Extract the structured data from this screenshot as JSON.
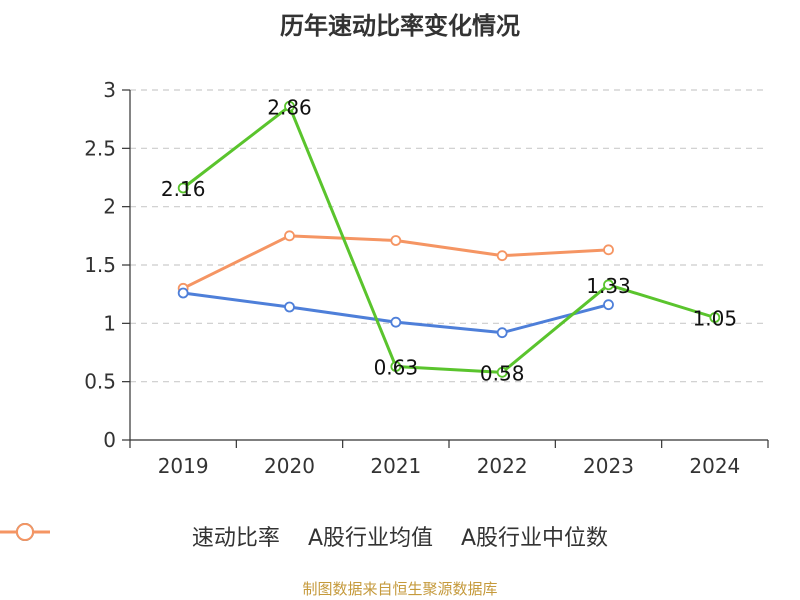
{
  "chart_data": {
    "type": "line",
    "title": "历年速动比率变化情况",
    "categories": [
      "2019",
      "2020",
      "2021",
      "2022",
      "2023",
      "2024"
    ],
    "ylim": [
      0,
      3
    ],
    "yticks": [
      "0",
      "0.5",
      "1",
      "1.5",
      "2",
      "2.5",
      "3"
    ],
    "grid": true,
    "legend_position": "bottom",
    "series": [
      {
        "name": "速动比率",
        "color": "#5ac42d",
        "values": [
          2.16,
          2.86,
          0.63,
          0.58,
          1.33,
          1.05
        ],
        "labels": [
          "2.16",
          "2.86",
          "0.63",
          "0.58",
          "1.33",
          "1.05"
        ]
      },
      {
        "name": "A股行业均值",
        "color": "#4e7fd9",
        "values": [
          1.26,
          1.14,
          1.01,
          0.92,
          1.16,
          null
        ]
      },
      {
        "name": "A股行业中位数",
        "color": "#f59563",
        "values": [
          1.3,
          1.75,
          1.71,
          1.58,
          1.63,
          null
        ]
      }
    ]
  },
  "footer": {
    "source": "制图数据来自恒生聚源数据库"
  }
}
